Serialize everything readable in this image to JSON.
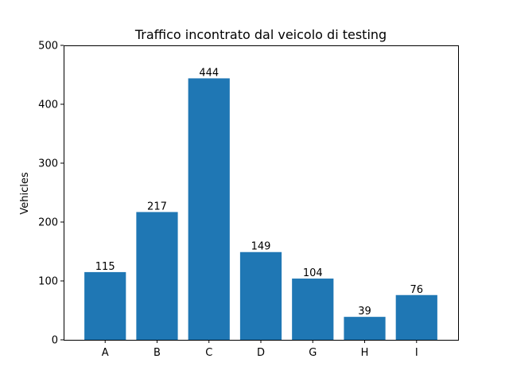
{
  "chart_data": {
    "type": "bar",
    "title": "Traffico incontrato dal veicolo di testing",
    "xlabel": "",
    "ylabel": "Vehicles",
    "categories": [
      "A",
      "B",
      "C",
      "D",
      "G",
      "H",
      "I"
    ],
    "values": [
      115,
      217,
      444,
      149,
      104,
      39,
      76
    ],
    "data_labels": [
      "115",
      "217",
      "444",
      "149",
      "104",
      "39",
      "76"
    ],
    "ylim": [
      0,
      500
    ],
    "yticks": [
      0,
      100,
      200,
      300,
      400,
      500
    ],
    "grid": false,
    "legend": "none",
    "bar_color": "#1f77b4"
  }
}
